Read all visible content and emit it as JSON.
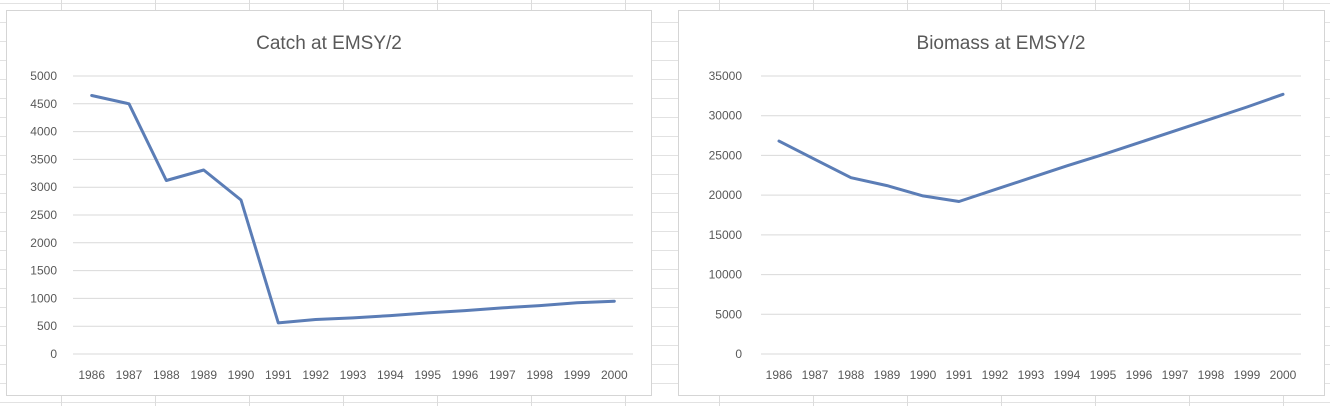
{
  "chart_data": [
    {
      "type": "line",
      "title": "Catch at EMSY/2",
      "xlabel": "",
      "ylabel": "",
      "x": [
        "1986",
        "1987",
        "1988",
        "1989",
        "1990",
        "1991",
        "1992",
        "1993",
        "1994",
        "1995",
        "1996",
        "1997",
        "1998",
        "1999",
        "2000"
      ],
      "series": [
        {
          "values": [
            4650,
            4500,
            3120,
            3310,
            2770,
            560,
            620,
            650,
            690,
            740,
            780,
            830,
            870,
            920,
            950
          ],
          "color": "#5b7db6"
        }
      ],
      "ylim": [
        0,
        5000
      ],
      "yticks": [
        "0",
        "500",
        "1000",
        "1500",
        "2000",
        "2500",
        "3000",
        "3500",
        "4000",
        "4500",
        "5000"
      ],
      "grid": true,
      "legend": "none"
    },
    {
      "type": "line",
      "title": "Biomass at EMSY/2",
      "xlabel": "",
      "ylabel": "",
      "x": [
        "1986",
        "1987",
        "1988",
        "1989",
        "1990",
        "1991",
        "1992",
        "1993",
        "1994",
        "1995",
        "1996",
        "1997",
        "1998",
        "1999",
        "2000"
      ],
      "series": [
        {
          "values": [
            26800,
            24500,
            22200,
            21200,
            19900,
            19200,
            20700,
            22200,
            23700,
            25100,
            26600,
            28100,
            29600,
            31100,
            32700
          ],
          "color": "#5b7db6"
        }
      ],
      "ylim": [
        0,
        35000
      ],
      "yticks": [
        "0",
        "5000",
        "10000",
        "15000",
        "20000",
        "25000",
        "30000",
        "35000"
      ],
      "grid": true,
      "legend": "none"
    }
  ]
}
